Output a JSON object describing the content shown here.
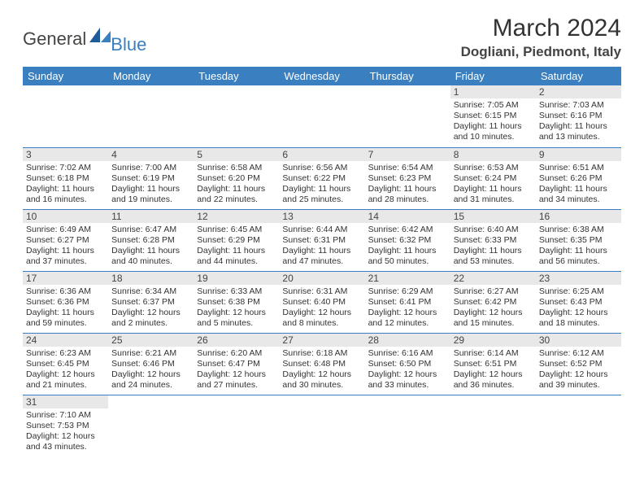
{
  "logo": {
    "general": "General",
    "blue": "Blue"
  },
  "title": "March 2024",
  "location": "Dogliani, Piedmont, Italy",
  "colors": {
    "header_bg": "#3a7fc0",
    "header_fg": "#ffffff",
    "daynum_bg": "#e8e8e8",
    "rule": "#3a7fc0"
  },
  "weekdays": [
    "Sunday",
    "Monday",
    "Tuesday",
    "Wednesday",
    "Thursday",
    "Friday",
    "Saturday"
  ],
  "labels": {
    "sunrise": "Sunrise:",
    "sunset": "Sunset:",
    "daylight": "Daylight:"
  },
  "weeks": [
    [
      null,
      null,
      null,
      null,
      null,
      {
        "n": "1",
        "sr": "7:05 AM",
        "ss": "6:15 PM",
        "dl": "11 hours and 10 minutes."
      },
      {
        "n": "2",
        "sr": "7:03 AM",
        "ss": "6:16 PM",
        "dl": "11 hours and 13 minutes."
      }
    ],
    [
      {
        "n": "3",
        "sr": "7:02 AM",
        "ss": "6:18 PM",
        "dl": "11 hours and 16 minutes."
      },
      {
        "n": "4",
        "sr": "7:00 AM",
        "ss": "6:19 PM",
        "dl": "11 hours and 19 minutes."
      },
      {
        "n": "5",
        "sr": "6:58 AM",
        "ss": "6:20 PM",
        "dl": "11 hours and 22 minutes."
      },
      {
        "n": "6",
        "sr": "6:56 AM",
        "ss": "6:22 PM",
        "dl": "11 hours and 25 minutes."
      },
      {
        "n": "7",
        "sr": "6:54 AM",
        "ss": "6:23 PM",
        "dl": "11 hours and 28 minutes."
      },
      {
        "n": "8",
        "sr": "6:53 AM",
        "ss": "6:24 PM",
        "dl": "11 hours and 31 minutes."
      },
      {
        "n": "9",
        "sr": "6:51 AM",
        "ss": "6:26 PM",
        "dl": "11 hours and 34 minutes."
      }
    ],
    [
      {
        "n": "10",
        "sr": "6:49 AM",
        "ss": "6:27 PM",
        "dl": "11 hours and 37 minutes."
      },
      {
        "n": "11",
        "sr": "6:47 AM",
        "ss": "6:28 PM",
        "dl": "11 hours and 40 minutes."
      },
      {
        "n": "12",
        "sr": "6:45 AM",
        "ss": "6:29 PM",
        "dl": "11 hours and 44 minutes."
      },
      {
        "n": "13",
        "sr": "6:44 AM",
        "ss": "6:31 PM",
        "dl": "11 hours and 47 minutes."
      },
      {
        "n": "14",
        "sr": "6:42 AM",
        "ss": "6:32 PM",
        "dl": "11 hours and 50 minutes."
      },
      {
        "n": "15",
        "sr": "6:40 AM",
        "ss": "6:33 PM",
        "dl": "11 hours and 53 minutes."
      },
      {
        "n": "16",
        "sr": "6:38 AM",
        "ss": "6:35 PM",
        "dl": "11 hours and 56 minutes."
      }
    ],
    [
      {
        "n": "17",
        "sr": "6:36 AM",
        "ss": "6:36 PM",
        "dl": "11 hours and 59 minutes."
      },
      {
        "n": "18",
        "sr": "6:34 AM",
        "ss": "6:37 PM",
        "dl": "12 hours and 2 minutes."
      },
      {
        "n": "19",
        "sr": "6:33 AM",
        "ss": "6:38 PM",
        "dl": "12 hours and 5 minutes."
      },
      {
        "n": "20",
        "sr": "6:31 AM",
        "ss": "6:40 PM",
        "dl": "12 hours and 8 minutes."
      },
      {
        "n": "21",
        "sr": "6:29 AM",
        "ss": "6:41 PM",
        "dl": "12 hours and 12 minutes."
      },
      {
        "n": "22",
        "sr": "6:27 AM",
        "ss": "6:42 PM",
        "dl": "12 hours and 15 minutes."
      },
      {
        "n": "23",
        "sr": "6:25 AM",
        "ss": "6:43 PM",
        "dl": "12 hours and 18 minutes."
      }
    ],
    [
      {
        "n": "24",
        "sr": "6:23 AM",
        "ss": "6:45 PM",
        "dl": "12 hours and 21 minutes."
      },
      {
        "n": "25",
        "sr": "6:21 AM",
        "ss": "6:46 PM",
        "dl": "12 hours and 24 minutes."
      },
      {
        "n": "26",
        "sr": "6:20 AM",
        "ss": "6:47 PM",
        "dl": "12 hours and 27 minutes."
      },
      {
        "n": "27",
        "sr": "6:18 AM",
        "ss": "6:48 PM",
        "dl": "12 hours and 30 minutes."
      },
      {
        "n": "28",
        "sr": "6:16 AM",
        "ss": "6:50 PM",
        "dl": "12 hours and 33 minutes."
      },
      {
        "n": "29",
        "sr": "6:14 AM",
        "ss": "6:51 PM",
        "dl": "12 hours and 36 minutes."
      },
      {
        "n": "30",
        "sr": "6:12 AM",
        "ss": "6:52 PM",
        "dl": "12 hours and 39 minutes."
      }
    ],
    [
      {
        "n": "31",
        "sr": "7:10 AM",
        "ss": "7:53 PM",
        "dl": "12 hours and 43 minutes."
      },
      null,
      null,
      null,
      null,
      null,
      null
    ]
  ]
}
